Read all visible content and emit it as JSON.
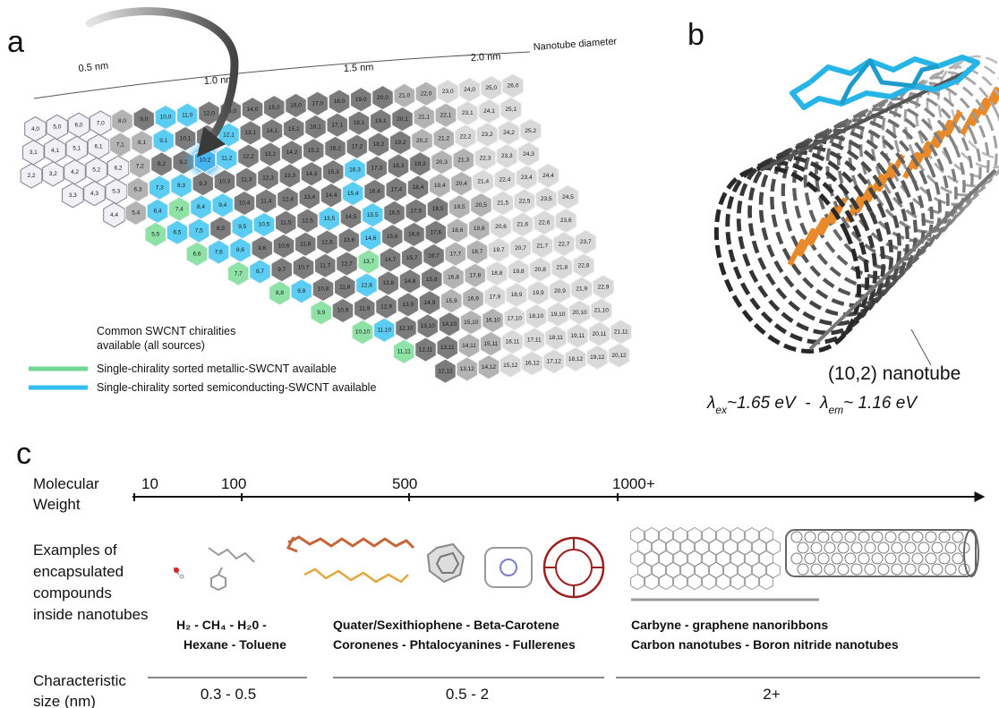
{
  "panel_a": {
    "letter": "a",
    "diameter_axis": {
      "title": "Nanotube diameter",
      "ticks": [
        "0.5 nm",
        "1.0 nm",
        "1.5 nm",
        "2.0 nm"
      ]
    },
    "chirality_map": {
      "kind_colors": {
        "f": "#f1f1f5",
        "g": "#b3b3b3",
        "c": "#7b7b7b",
        "l": "#d9d9d9",
        "s": "#5ccdf2",
        "m": "#8ee2a6",
        "h": "#44b4f2"
      },
      "rows": [
        {
          "labels": [
            "4,0",
            "5,0",
            "6,0",
            "7,0",
            "8,0",
            "9,0",
            "10,0",
            "11,0",
            "12,0",
            "13,0",
            "14,0",
            "15,0",
            "16,0",
            "17,0",
            "18,0",
            "19,0",
            "20,0",
            "21,0",
            "22,0",
            "23,0",
            "24,0",
            "25,0",
            "26,0"
          ],
          "kinds": "ffffgcsscccccccccggllll"
        },
        {
          "labels": [
            "3,1",
            "4,1",
            "5,1",
            "6,1",
            "7,1",
            "8,1",
            "9,1",
            "10,1",
            "11,1",
            "12,1",
            "13,1",
            "14,1",
            "15,1",
            "16,1",
            "17,1",
            "18,1",
            "19,1",
            "20,1",
            "21,1",
            "22,1",
            "23,1",
            "24,1",
            "25,1"
          ],
          "kinds": "ffffggsccsccccccccgglll"
        },
        {
          "labels": [
            "2,2",
            "3,2",
            "4,2",
            "5,2",
            "6,2",
            "7,2",
            "8,2",
            "9,2",
            "10,2",
            "11,2",
            "12,2",
            "13,2",
            "14,2",
            "15,2",
            "16,2",
            "17,2",
            "18,2",
            "19,2",
            "20,2",
            "21,2",
            "22,2",
            "23,2",
            "24,2",
            "25,2"
          ],
          "kinds": "fffffgcchsccccccccggllll"
        },
        {
          "labels": [
            "3,3",
            "4,3",
            "5,3",
            "6,3",
            "7,3",
            "8,3",
            "9,3",
            "10,3",
            "11,3",
            "12,3",
            "13,3",
            "14,3",
            "15,3",
            "16,3",
            "17,3",
            "18,3",
            "19,3",
            "20,3",
            "21,3",
            "22,3",
            "23,3",
            "24,3"
          ],
          "kinds": "fffgsscccccccscccgglll"
        },
        {
          "labels": [
            "4,4",
            "5,4",
            "6,4",
            "7,4",
            "8,4",
            "9,4",
            "10,4",
            "11,4",
            "12,4",
            "13,4",
            "14,4",
            "15,4",
            "16,4",
            "17,4",
            "18,4",
            "19,4",
            "20,4",
            "21,4",
            "22,4",
            "23,4",
            "24,4"
          ],
          "kinds": "fgsmsscccccscccggllll"
        },
        {
          "labels": [
            "5,5",
            "6,5",
            "7,5",
            "8,5",
            "9,5",
            "10,5",
            "11,5",
            "12,5",
            "13,5",
            "14,5",
            "15,5",
            "16,5",
            "17,5",
            "18,5",
            "19,5",
            "20,5",
            "21,5",
            "22,5",
            "23,5",
            "24,5"
          ],
          "kinds": "msscssccscscccggllll"
        },
        {
          "labels": [
            "6,6",
            "7,6",
            "8,6",
            "9,6",
            "10,6",
            "11,6",
            "12,6",
            "13,6",
            "14,6",
            "15,6",
            "16,6",
            "17,6",
            "18,6",
            "19,6",
            "20,6",
            "21,6",
            "22,6",
            "23,6"
          ],
          "kinds": "msscccccscccggllll"
        },
        {
          "labels": [
            "7,7",
            "8,7",
            "9,7",
            "10,7",
            "11,7",
            "12,7",
            "13,7",
            "14,7",
            "15,7",
            "16,7",
            "17,7",
            "18,7",
            "19,7",
            "20,7",
            "21,7",
            "22,7",
            "23,7"
          ],
          "kinds": "msccccmcccgglllll"
        },
        {
          "labels": [
            "8,8",
            "9,8",
            "10,8",
            "11,8",
            "12,8",
            "13,8",
            "14,8",
            "15,8",
            "16,8",
            "17,8",
            "18,8",
            "19,8",
            "20,8",
            "21,8",
            "22,8"
          ],
          "kinds": "msccscccgglllll"
        },
        {
          "labels": [
            "9,9",
            "10,9",
            "11,9",
            "12,9",
            "13,9",
            "14,9",
            "15,9",
            "16,9",
            "17,9",
            "18,9",
            "19,9",
            "20,9",
            "21,9",
            "22,9"
          ],
          "kinds": "mcccccggllllll"
        },
        {
          "labels": [
            "10,10",
            "11,10",
            "12,10",
            "13,10",
            "14,10",
            "15,10",
            "16,10",
            "17,10",
            "18,10",
            "19,10",
            "20,10",
            "21,10"
          ],
          "kinds": "mscccgglllll"
        },
        {
          "labels": [
            "11,11",
            "12,11",
            "13,11",
            "14,11",
            "15,11",
            "16,11",
            "17,11",
            "18,11",
            "19,11",
            "20,11",
            "21,11"
          ],
          "kinds": "mccggllllll"
        },
        {
          "labels": [
            "12,12",
            "13,12",
            "14,12",
            "15,12",
            "16,12",
            "17,12",
            "18,12",
            "19,12",
            "20,12"
          ],
          "kinds": "cggllllll"
        }
      ]
    },
    "legend": [
      {
        "lines": [
          "Common SWCNT chiralities",
          "available (all sources)"
        ],
        "colors": [
          "#d0d0d0",
          "#5a5a5a"
        ]
      },
      {
        "lines": [
          "Single-chirality sorted metallic-SWCNT available"
        ],
        "colors": [
          "#6fd696"
        ]
      },
      {
        "lines": [
          "Single-chirality sorted semiconducting-SWCNT available"
        ],
        "colors": [
          "#2fbff0"
        ]
      }
    ]
  },
  "panel_b": {
    "letter": "b",
    "tube_label": "(10,2) nanotube",
    "energy": {
      "ex_symbol": "λ",
      "ex_sub": "ex",
      "ex_value": "~1.65 eV  -  ",
      "em_symbol": "λ",
      "em_sub": "em",
      "em_value": "~ 1.16 eV"
    }
  },
  "panel_c": {
    "letter": "c",
    "axis_title": [
      "Molecular",
      "Weight"
    ],
    "axis_ticks": [
      "10",
      "100",
      "500",
      "1000+"
    ],
    "examples_title": [
      "Examples of",
      "encapsulated",
      "compounds",
      "inside nanotubes"
    ],
    "groups": [
      {
        "lines": [
          "H₂ - CH₄ - H₂0 -",
          "Hexane - Toluene"
        ],
        "size": "0.3 - 0.5"
      },
      {
        "lines": [
          "Quater/Sexithiophene - Beta-Carotene",
          "Coronenes - Phtalocyanines - Fullerenes"
        ],
        "size": "0.5 - 2"
      },
      {
        "lines": [
          "Carbyne - graphene nanoribbons",
          "Carbon nanotubes - Boron nitride nanotubes"
        ],
        "size": "2+"
      }
    ],
    "size_title": [
      "Characteristic",
      "size (nm)"
    ]
  }
}
